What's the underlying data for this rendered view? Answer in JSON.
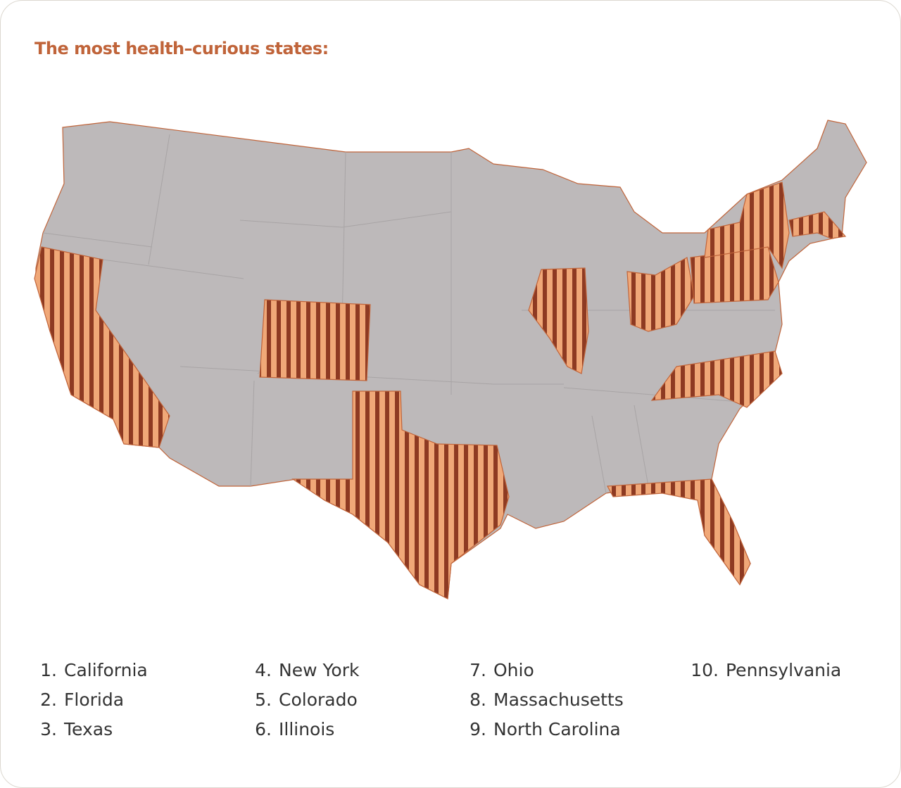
{
  "title": "The most health–curious states:",
  "list": {
    "items": [
      {
        "rank": "1.",
        "state": "California"
      },
      {
        "rank": "2.",
        "state": "Florida"
      },
      {
        "rank": "3.",
        "state": "Texas"
      },
      {
        "rank": "4.",
        "state": "New York"
      },
      {
        "rank": "5.",
        "state": "Colorado"
      },
      {
        "rank": "6.",
        "state": "Illinois"
      },
      {
        "rank": "7.",
        "state": "Ohio"
      },
      {
        "rank": "8.",
        "state": "Massachusetts"
      },
      {
        "rank": "9.",
        "state": "North Carolina"
      },
      {
        "rank": "10.",
        "state": "Pennsylvania"
      }
    ]
  }
}
